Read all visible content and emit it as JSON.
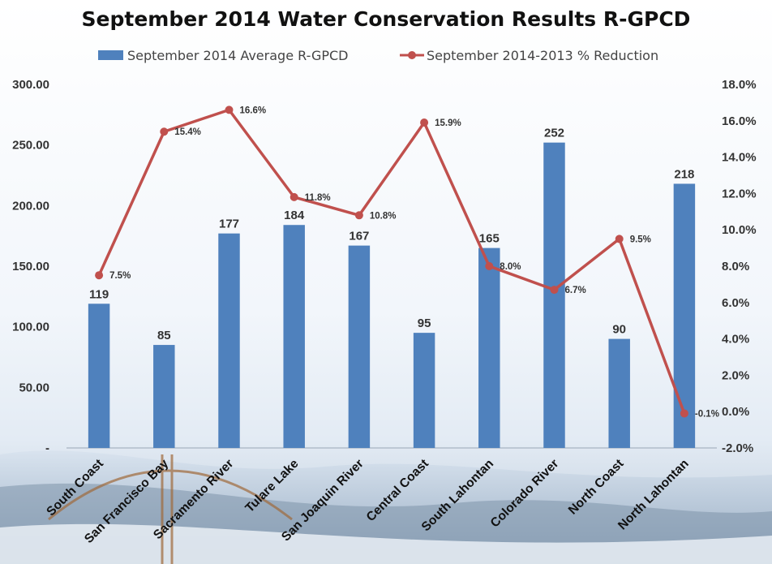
{
  "chart_data": {
    "type": "bar",
    "title": "September 2014 Water Conservation Results R-GPCD",
    "legend_placement": "top",
    "categories": [
      "South Coast",
      "San Francisco Bay",
      "Sacramento River",
      "Tulare Lake",
      "San Joaquin River",
      "Central Coast",
      "South Lahontan",
      "Colorado River",
      "North Coast",
      "North Lahontan"
    ],
    "series": [
      {
        "name": "September 2014 Average R-GPCD",
        "type": "bar",
        "axis": "left",
        "color": "#4f81bd",
        "values": [
          119,
          85,
          177,
          184,
          167,
          95,
          165,
          252,
          90,
          218
        ],
        "labels": [
          "119",
          "85",
          "177",
          "184",
          "167",
          "95",
          "165",
          "252",
          "90",
          "218"
        ]
      },
      {
        "name": "September 2014-2013 % Reduction",
        "type": "line",
        "axis": "right",
        "color": "#c0504d",
        "values": [
          7.5,
          15.4,
          16.6,
          11.8,
          10.8,
          15.9,
          8.0,
          6.7,
          9.5,
          -0.1
        ],
        "labels": [
          "7.5%",
          "15.4%",
          "16.6%",
          "11.8%",
          "10.8%",
          "15.9%",
          "8.0%",
          "6.7%",
          "9.5%",
          "-0.1%"
        ]
      }
    ],
    "y_left": {
      "range": [
        0,
        300
      ],
      "ticks": [
        0,
        50,
        100,
        150,
        200,
        250,
        300
      ],
      "tick_labels": [
        "-",
        "50.00",
        "100.00",
        "150.00",
        "200.00",
        "250.00",
        "300.00"
      ]
    },
    "y_right": {
      "range": [
        -2,
        18
      ],
      "ticks": [
        -2,
        0,
        2,
        4,
        6,
        8,
        10,
        12,
        14,
        16,
        18
      ],
      "tick_labels": [
        "-2.0%",
        "0.0%",
        "2.0%",
        "4.0%",
        "6.0%",
        "8.0%",
        "10.0%",
        "12.0%",
        "14.0%",
        "16.0%",
        "18.0%"
      ]
    },
    "grid": false
  }
}
